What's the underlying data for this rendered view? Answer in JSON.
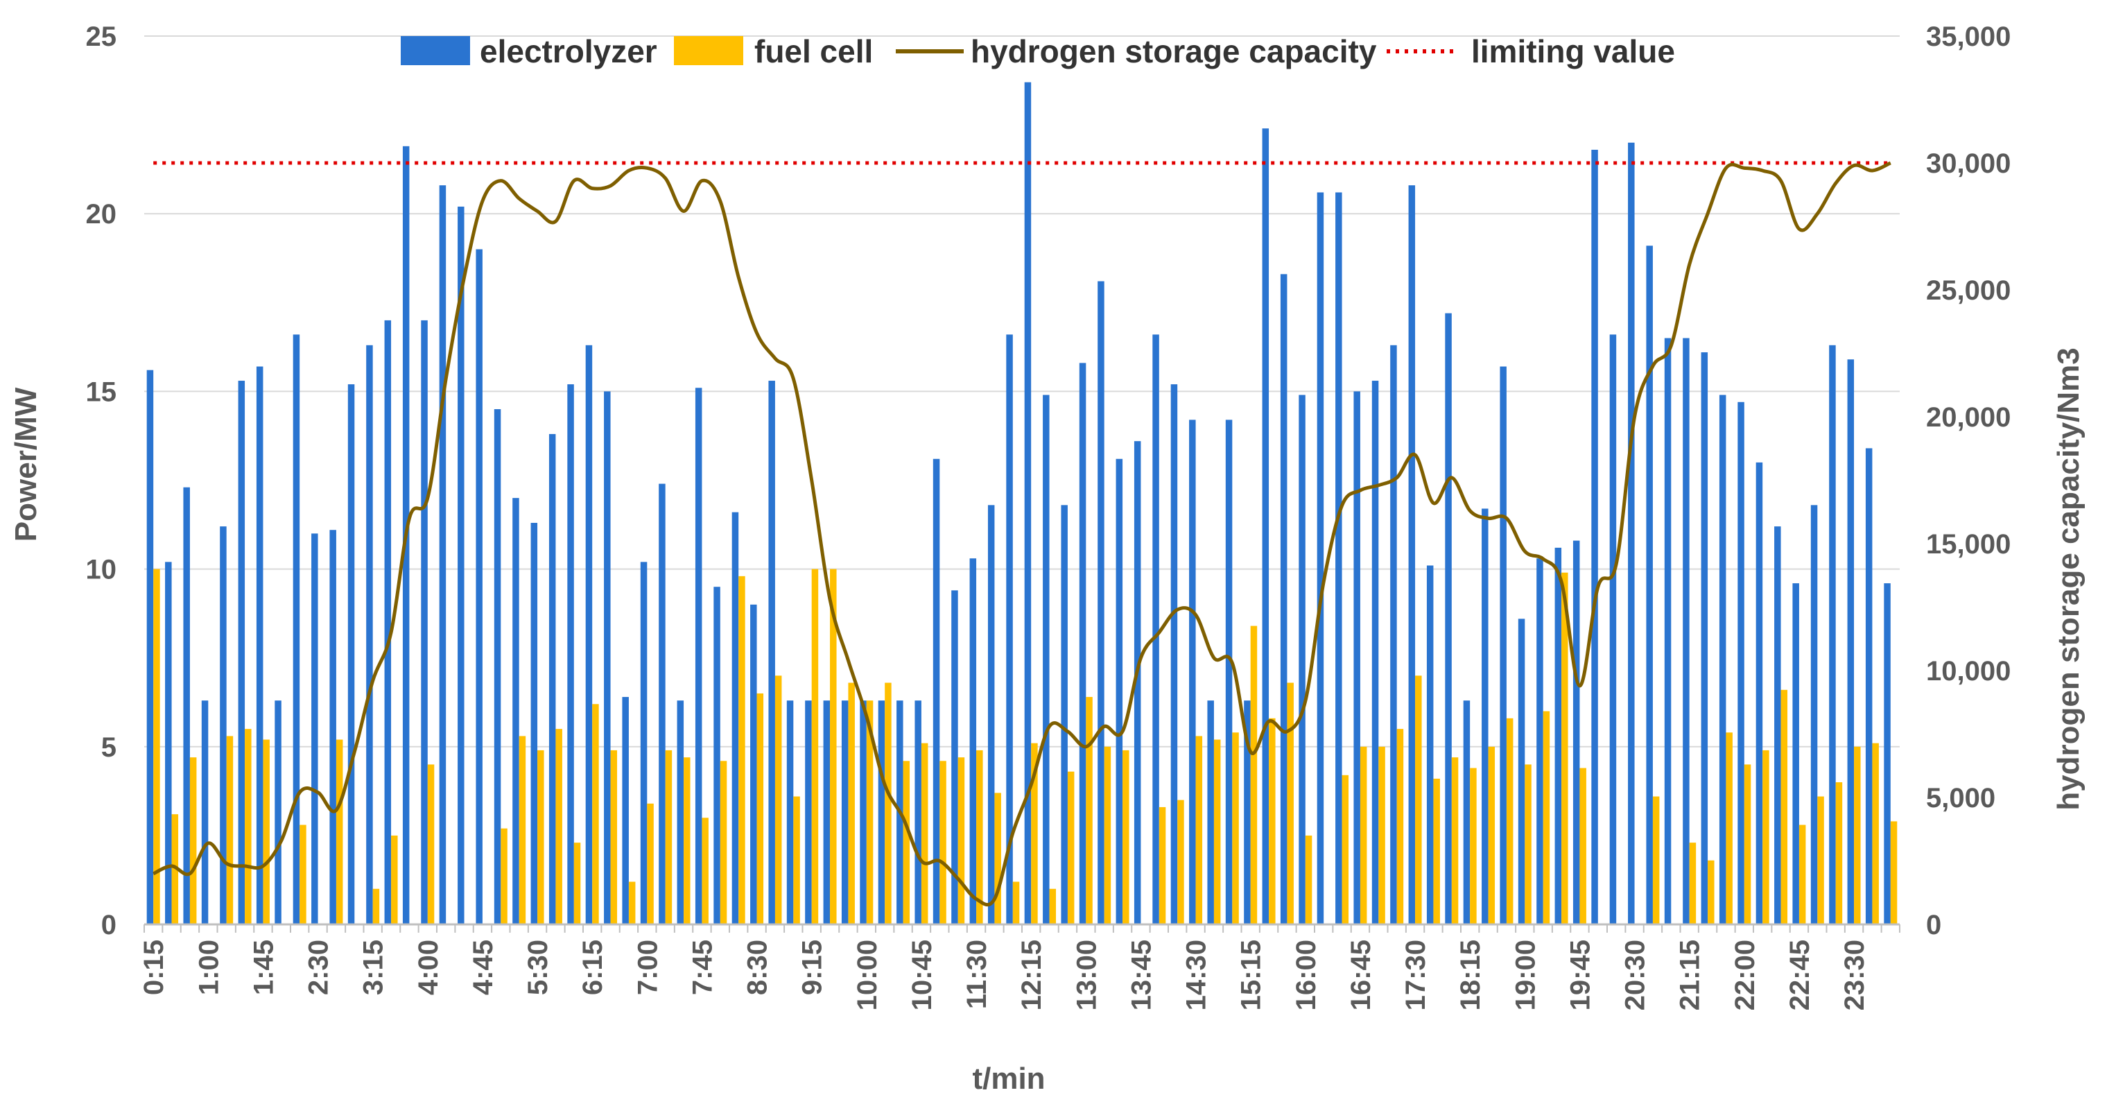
{
  "chart_data": {
    "type": "bar",
    "title": "",
    "xlabel": "t/min",
    "ylabel": "Power/MW",
    "y2label": "hydrogen storage capacity/Nm3",
    "ylim": [
      0,
      25
    ],
    "y2lim": [
      0,
      35000
    ],
    "yticks": [
      "0",
      "5",
      "10",
      "15",
      "20",
      "25"
    ],
    "y2ticks": [
      "0",
      "5,000",
      "10,000",
      "15,000",
      "20,000",
      "25,000",
      "30,000",
      "35,000"
    ],
    "grid": true,
    "legend_position": "top",
    "colors": {
      "electrolyzer": "#2A74D0",
      "fuel_cell": "#FFC000",
      "storage": "#7F5F00",
      "limit": "#E00000",
      "grid": "#D9D9D9",
      "axis": "#BFBFBF"
    },
    "legend": [
      "electrolyzer",
      "fuel cell",
      "hydrogen storage capacity",
      "limiting value"
    ],
    "x_tick_labels": [
      "0:15",
      "1:00",
      "1:45",
      "2:30",
      "3:15",
      "4:00",
      "4:45",
      "5:30",
      "6:15",
      "7:00",
      "7:45",
      "8:30",
      "9:15",
      "10:00",
      "10:45",
      "11:30",
      "12:15",
      "13:00",
      "13:45",
      "14:30",
      "15:15",
      "16:00",
      "16:45",
      "17:30",
      "18:15",
      "19:00",
      "19:45",
      "20:30",
      "21:15",
      "22:00",
      "22:45",
      "23:30"
    ],
    "n_points": 96,
    "series": [
      {
        "name": "electrolyzer",
        "type": "bar",
        "axis": "left",
        "values": [
          15.6,
          10.2,
          12.3,
          6.3,
          11.2,
          15.3,
          15.7,
          6.3,
          16.6,
          11.0,
          11.1,
          15.2,
          16.3,
          17.0,
          21.9,
          17.0,
          20.8,
          20.2,
          19.0,
          14.5,
          12.0,
          11.3,
          13.8,
          15.2,
          16.3,
          15.0,
          6.4,
          10.2,
          12.4,
          6.3,
          15.1,
          9.5,
          11.6,
          9.0,
          15.3,
          6.3,
          6.3,
          6.3,
          6.3,
          6.3,
          6.3,
          6.3,
          6.3,
          13.1,
          9.4,
          10.3,
          11.8,
          16.6,
          23.7,
          14.9,
          11.8,
          15.8,
          18.1,
          13.1,
          13.6,
          16.6,
          15.2,
          14.2,
          6.3,
          14.2,
          6.3,
          22.4,
          18.3,
          14.9,
          20.6,
          20.6,
          15.0,
          15.3,
          16.3,
          20.8,
          10.1,
          17.2,
          6.3,
          11.7,
          15.7,
          8.6,
          10.3,
          10.6,
          10.8,
          21.8,
          16.6,
          22.0,
          19.1,
          16.5,
          16.5,
          16.1,
          14.9,
          14.7,
          13.0,
          11.2,
          9.6,
          11.8,
          16.3,
          15.9,
          13.4,
          9.6
        ]
      },
      {
        "name": "fuel cell",
        "type": "bar",
        "axis": "left",
        "values": [
          10.0,
          3.1,
          4.7,
          0,
          5.3,
          5.5,
          5.2,
          0,
          2.8,
          0,
          5.2,
          0,
          1.0,
          2.5,
          0,
          4.5,
          0,
          0,
          0,
          2.7,
          5.3,
          4.9,
          5.5,
          2.3,
          6.2,
          4.9,
          1.2,
          3.4,
          4.9,
          4.7,
          3.0,
          4.6,
          9.8,
          6.5,
          7.0,
          3.6,
          10.0,
          10.0,
          6.8,
          6.3,
          6.8,
          4.6,
          5.1,
          4.6,
          4.7,
          4.9,
          3.7,
          1.2,
          5.1,
          1.0,
          4.3,
          6.4,
          5.0,
          4.9,
          0,
          3.3,
          3.5,
          5.3,
          5.2,
          5.4,
          8.4,
          5.8,
          6.8,
          2.5,
          0,
          4.2,
          5.0,
          5.0,
          5.5,
          7.0,
          4.1,
          4.7,
          4.4,
          5.0,
          5.8,
          4.5,
          6.0,
          9.9,
          4.4,
          0,
          0,
          0,
          3.6,
          0,
          2.3,
          1.8,
          5.4,
          4.5,
          4.9,
          6.6,
          2.8,
          3.6,
          4.0,
          5.0,
          5.1,
          2.9
        ]
      },
      {
        "name": "hydrogen storage capacity",
        "type": "line",
        "axis": "right",
        "points": [
          [
            0,
            2000
          ],
          [
            1,
            2300
          ],
          [
            2,
            2000
          ],
          [
            3,
            3200
          ],
          [
            4,
            2400
          ],
          [
            5,
            2300
          ],
          [
            6,
            2300
          ],
          [
            7,
            3300
          ],
          [
            8,
            5200
          ],
          [
            9,
            5200
          ],
          [
            10,
            4500
          ],
          [
            11,
            6800
          ],
          [
            12,
            9600
          ],
          [
            13,
            11500
          ],
          [
            14,
            16000
          ],
          [
            15,
            16800
          ],
          [
            16,
            21500
          ],
          [
            17,
            25500
          ],
          [
            18,
            28500
          ],
          [
            19,
            29300
          ],
          [
            20,
            28600
          ],
          [
            21,
            28100
          ],
          [
            22,
            27700
          ],
          [
            23,
            29300
          ],
          [
            24,
            29000
          ],
          [
            25,
            29100
          ],
          [
            26,
            29700
          ],
          [
            27,
            29800
          ],
          [
            28,
            29400
          ],
          [
            29,
            28100
          ],
          [
            30,
            29300
          ],
          [
            31,
            28500
          ],
          [
            32,
            25500
          ],
          [
            33,
            23300
          ],
          [
            34,
            22300
          ],
          [
            35,
            21500
          ],
          [
            36,
            17500
          ],
          [
            37,
            12800
          ],
          [
            38,
            10400
          ],
          [
            39,
            8200
          ],
          [
            40,
            5500
          ],
          [
            41,
            4200
          ],
          [
            42,
            2500
          ],
          [
            43,
            2500
          ],
          [
            44,
            1800
          ],
          [
            45,
            1000
          ],
          [
            46,
            1000
          ],
          [
            47,
            3600
          ],
          [
            48,
            5500
          ],
          [
            49,
            7800
          ],
          [
            50,
            7600
          ],
          [
            51,
            7000
          ],
          [
            52,
            7800
          ],
          [
            53,
            7600
          ],
          [
            54,
            10500
          ],
          [
            55,
            11500
          ],
          [
            56,
            12400
          ],
          [
            57,
            12200
          ],
          [
            58,
            10500
          ],
          [
            59,
            10300
          ],
          [
            60,
            6800
          ],
          [
            61,
            8000
          ],
          [
            62,
            7600
          ],
          [
            63,
            8800
          ],
          [
            64,
            13500
          ],
          [
            65,
            16500
          ],
          [
            66,
            17100
          ],
          [
            67,
            17300
          ],
          [
            68,
            17600
          ],
          [
            69,
            18500
          ],
          [
            70,
            16600
          ],
          [
            71,
            17600
          ],
          [
            72,
            16300
          ],
          [
            73,
            16000
          ],
          [
            74,
            16000
          ],
          [
            75,
            14700
          ],
          [
            76,
            14400
          ],
          [
            77,
            13500
          ],
          [
            78,
            9400
          ],
          [
            79,
            13300
          ],
          [
            80,
            14200
          ],
          [
            81,
            20000
          ],
          [
            82,
            22000
          ],
          [
            83,
            22800
          ],
          [
            84,
            26000
          ],
          [
            85,
            28000
          ],
          [
            86,
            29800
          ],
          [
            87,
            29800
          ],
          [
            88,
            29700
          ],
          [
            89,
            29300
          ],
          [
            90,
            27400
          ],
          [
            91,
            28000
          ],
          [
            92,
            29200
          ],
          [
            93,
            29900
          ],
          [
            94,
            29700
          ],
          [
            95,
            30000
          ]
        ]
      },
      {
        "name": "limiting value",
        "type": "line",
        "axis": "right",
        "style": "dotted",
        "value": 30000
      }
    ]
  }
}
